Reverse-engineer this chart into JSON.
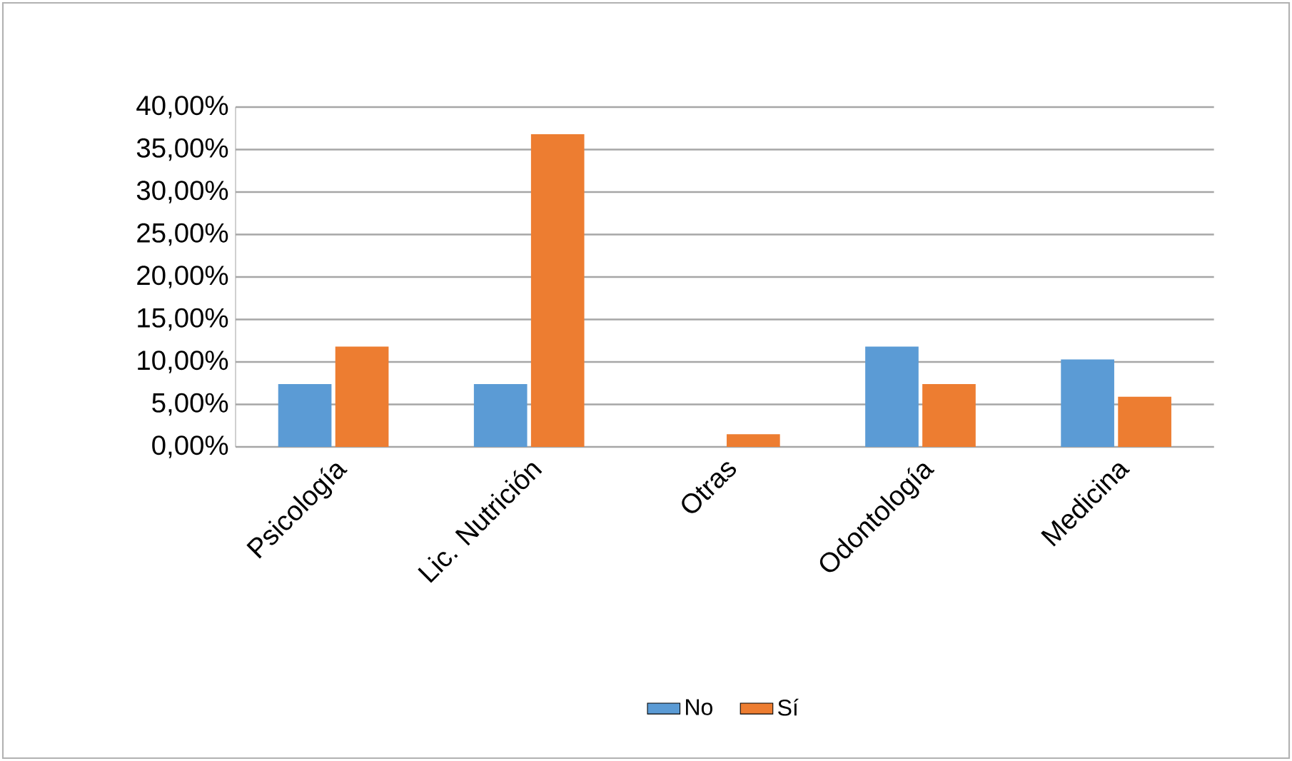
{
  "chart_data": {
    "type": "bar",
    "categories": [
      "Psicología",
      "Lic. Nutrición",
      "Otras",
      "Odontología",
      "Medicina"
    ],
    "series": [
      {
        "name": "No",
        "color": "#5b9bd5",
        "values": [
          7.4,
          7.4,
          0,
          11.8,
          10.3
        ]
      },
      {
        "name": "Sí",
        "color": "#ed7d31",
        "values": [
          11.8,
          36.8,
          1.5,
          7.4,
          5.9
        ]
      }
    ],
    "ylim": [
      0,
      40
    ],
    "yticks": [
      {
        "value": 0,
        "label": "0,00%"
      },
      {
        "value": 5,
        "label": "5,00%"
      },
      {
        "value": 10,
        "label": "10,00%"
      },
      {
        "value": 15,
        "label": "15,00%"
      },
      {
        "value": 20,
        "label": "20,00%"
      },
      {
        "value": 25,
        "label": "25,00%"
      },
      {
        "value": 30,
        "label": "30,00%"
      },
      {
        "value": 35,
        "label": "35,00%"
      },
      {
        "value": 40,
        "label": "40,00%"
      }
    ],
    "grid": "y",
    "legend": "bottom"
  }
}
